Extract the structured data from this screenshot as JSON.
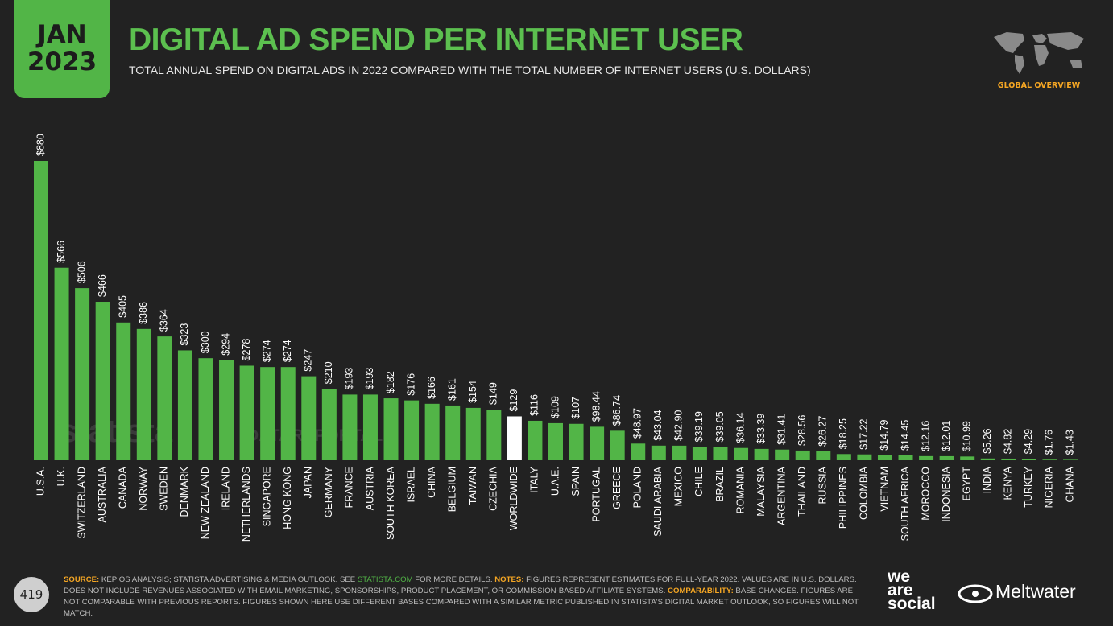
{
  "header": {
    "date_month": "JAN",
    "date_year": "2023",
    "title": "DIGITAL AD SPEND PER INTERNET USER",
    "subtitle": "TOTAL ANNUAL SPEND ON DIGITAL ADS IN 2022 COMPARED WITH THE TOTAL NUMBER OF INTERNET USERS (U.S. DOLLARS)",
    "section": "GLOBAL OVERVIEW"
  },
  "watermarks": [
    "statista",
    "DATAREPORTAL"
  ],
  "chart_data": {
    "type": "bar",
    "categories": [
      "U.S.A.",
      "U.K.",
      "SWITZERLAND",
      "AUSTRALIA",
      "CANADA",
      "NORWAY",
      "SWEDEN",
      "DENMARK",
      "NEW ZEALAND",
      "IRELAND",
      "NETHERLANDS",
      "SINGAPORE",
      "HONG KONG",
      "JAPAN",
      "GERMANY",
      "FRANCE",
      "AUSTRIA",
      "SOUTH KOREA",
      "ISRAEL",
      "CHINA",
      "BELGIUM",
      "TAIWAN",
      "CZECHIA",
      "WORLDWIDE",
      "ITALY",
      "U.A.E.",
      "SPAIN",
      "PORTUGAL",
      "GREECE",
      "POLAND",
      "SAUDI ARABIA",
      "MEXICO",
      "CHILE",
      "BRAZIL",
      "ROMANIA",
      "MALAYSIA",
      "ARGENTINA",
      "THAILAND",
      "RUSSIA",
      "PHILIPPINES",
      "COLOMBIA",
      "VIETNAM",
      "SOUTH AFRICA",
      "MOROCCO",
      "INDONESIA",
      "EGYPT",
      "INDIA",
      "KENYA",
      "TURKEY",
      "NIGERIA",
      "GHANA"
    ],
    "values": [
      880,
      566,
      506,
      466,
      405,
      386,
      364,
      323,
      300,
      294,
      278,
      274,
      274,
      247,
      210,
      193,
      193,
      182,
      176,
      166,
      161,
      154,
      149,
      129,
      116,
      109,
      107,
      98.44,
      86.74,
      48.97,
      43.04,
      42.9,
      39.19,
      39.05,
      36.14,
      33.39,
      31.41,
      28.56,
      26.27,
      18.25,
      17.22,
      14.79,
      14.45,
      12.16,
      12.01,
      10.99,
      5.26,
      4.82,
      4.29,
      1.76,
      1.43
    ],
    "value_labels": [
      "$880",
      "$566",
      "$506",
      "$466",
      "$405",
      "$386",
      "$364",
      "$323",
      "$300",
      "$294",
      "$278",
      "$274",
      "$274",
      "$247",
      "$210",
      "$193",
      "$193",
      "$182",
      "$176",
      "$166",
      "$161",
      "$154",
      "$149",
      "$129",
      "$116",
      "$109",
      "$107",
      "$98.44",
      "$86.74",
      "$48.97",
      "$43.04",
      "$42.90",
      "$39.19",
      "$39.05",
      "$36.14",
      "$33.39",
      "$31.41",
      "$28.56",
      "$26.27",
      "$18.25",
      "$17.22",
      "$14.79",
      "$14.45",
      "$12.16",
      "$12.01",
      "$10.99",
      "$5.26",
      "$4.82",
      "$4.29",
      "$1.76",
      "$1.43"
    ],
    "colors": [
      "#52b547",
      "#52b547",
      "#52b547",
      "#52b547",
      "#52b547",
      "#52b547",
      "#52b547",
      "#52b547",
      "#52b547",
      "#52b547",
      "#52b547",
      "#52b547",
      "#52b547",
      "#52b547",
      "#52b547",
      "#52b547",
      "#52b547",
      "#52b547",
      "#52b547",
      "#52b547",
      "#52b547",
      "#52b547",
      "#52b547",
      "#ffffff",
      "#52b547",
      "#52b547",
      "#52b547",
      "#52b547",
      "#52b547",
      "#52b547",
      "#52b547",
      "#52b547",
      "#52b547",
      "#52b547",
      "#52b547",
      "#52b547",
      "#52b547",
      "#52b547",
      "#52b547",
      "#52b547",
      "#52b547",
      "#52b547",
      "#52b547",
      "#52b547",
      "#52b547",
      "#52b547",
      "#52b547",
      "#52b547",
      "#52b547",
      "#52b547",
      "#52b547"
    ]
  },
  "footer": {
    "page_number": "419",
    "notes": [
      {
        "text": "SOURCE:",
        "style": "key"
      },
      {
        "text": " KEPIOS ANALYSIS; STATISTA ADVERTISING & MEDIA OUTLOOK. SEE ",
        "style": "plain"
      },
      {
        "text": "STATISTA.COM",
        "style": "link"
      },
      {
        "text": " FOR MORE DETAILS. ",
        "style": "plain"
      },
      {
        "text": "NOTES:",
        "style": "key"
      },
      {
        "text": " FIGURES REPRESENT ESTIMATES FOR FULL-YEAR 2022. VALUES ARE IN U.S. DOLLARS. DOES NOT INCLUDE REVENUES ASSOCIATED WITH EMAIL MARKETING, SPONSORSHIPS, PRODUCT PLACEMENT, OR COMMISSION-BASED AFFILIATE SYSTEMS. ",
        "style": "plain"
      },
      {
        "text": "COMPARABILITY:",
        "style": "key"
      },
      {
        "text": " BASE CHANGES. FIGURES ARE NOT COMPARABLE WITH PREVIOUS REPORTS. FIGURES SHOWN HERE USE DIFFERENT BASES COMPARED WITH A SIMILAR METRIC PUBLISHED IN STATISTA'S DIGITAL MARKET OUTLOOK, SO FIGURES WILL NOT MATCH.",
        "style": "plain"
      }
    ],
    "logo_1": [
      "we",
      "are",
      "social"
    ],
    "logo_2": "Meltwater"
  }
}
